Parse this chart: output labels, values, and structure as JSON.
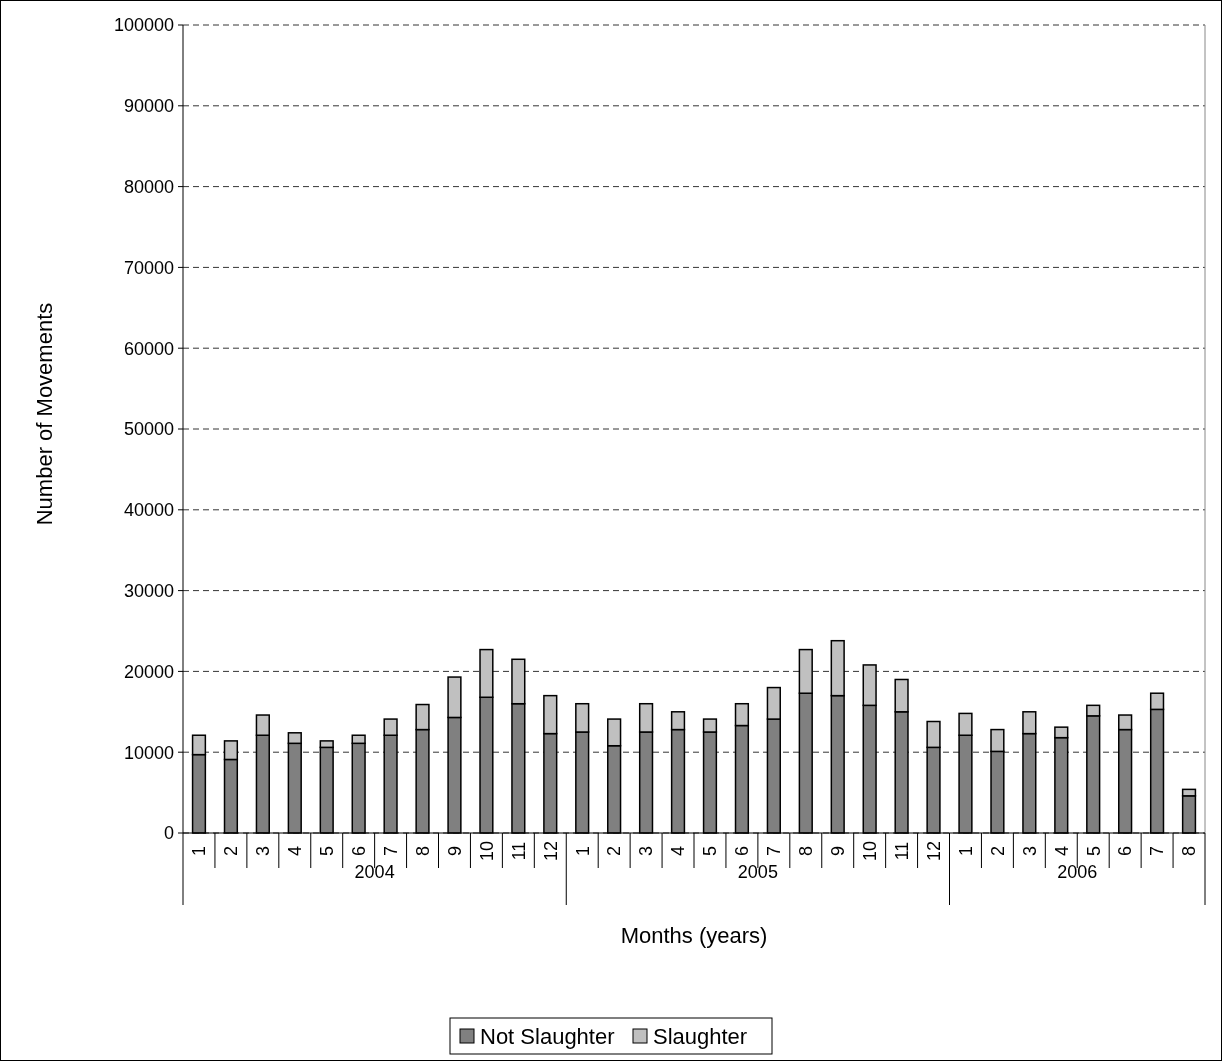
{
  "chart_data": {
    "type": "bar",
    "stacked": true,
    "xlabel": "Months (years)",
    "ylabel": "Number of Movements",
    "categories": [
      "1",
      "2",
      "3",
      "4",
      "5",
      "6",
      "7",
      "8",
      "9",
      "10",
      "11",
      "12",
      "1",
      "2",
      "3",
      "4",
      "5",
      "6",
      "7",
      "8",
      "9",
      "10",
      "11",
      "12",
      "1",
      "2",
      "3",
      "4",
      "5",
      "6",
      "7",
      "8"
    ],
    "annotations": [
      "2004",
      "2005",
      "2006"
    ],
    "series": [
      {
        "name": "Not Slaughter",
        "color": "#808080",
        "values": [
          9700,
          9100,
          12100,
          11100,
          10600,
          11100,
          12100,
          12800,
          14300,
          16800,
          16000,
          12300,
          12500,
          10800,
          12500,
          12800,
          12500,
          13300,
          14100,
          17300,
          17000,
          15800,
          15000,
          10600,
          12100,
          10100,
          12300,
          11800,
          14500,
          12800,
          15300,
          4600
        ]
      },
      {
        "name": "Slaughter",
        "color": "#c0c0c0",
        "values": [
          2400,
          2300,
          2500,
          1300,
          800,
          1000,
          2000,
          3100,
          5000,
          5900,
          5500,
          4700,
          3500,
          3300,
          3500,
          2200,
          1600,
          2700,
          3900,
          5400,
          6800,
          5000,
          4000,
          3200,
          2700,
          2700,
          2700,
          1300,
          1300,
          1800,
          2000,
          800
        ]
      }
    ],
    "ylim": [
      0,
      100000
    ],
    "yticks": [
      0,
      10000,
      20000,
      30000,
      40000,
      50000,
      60000,
      70000,
      80000,
      90000,
      100000
    ],
    "grid": "y",
    "legend": "bottom"
  }
}
